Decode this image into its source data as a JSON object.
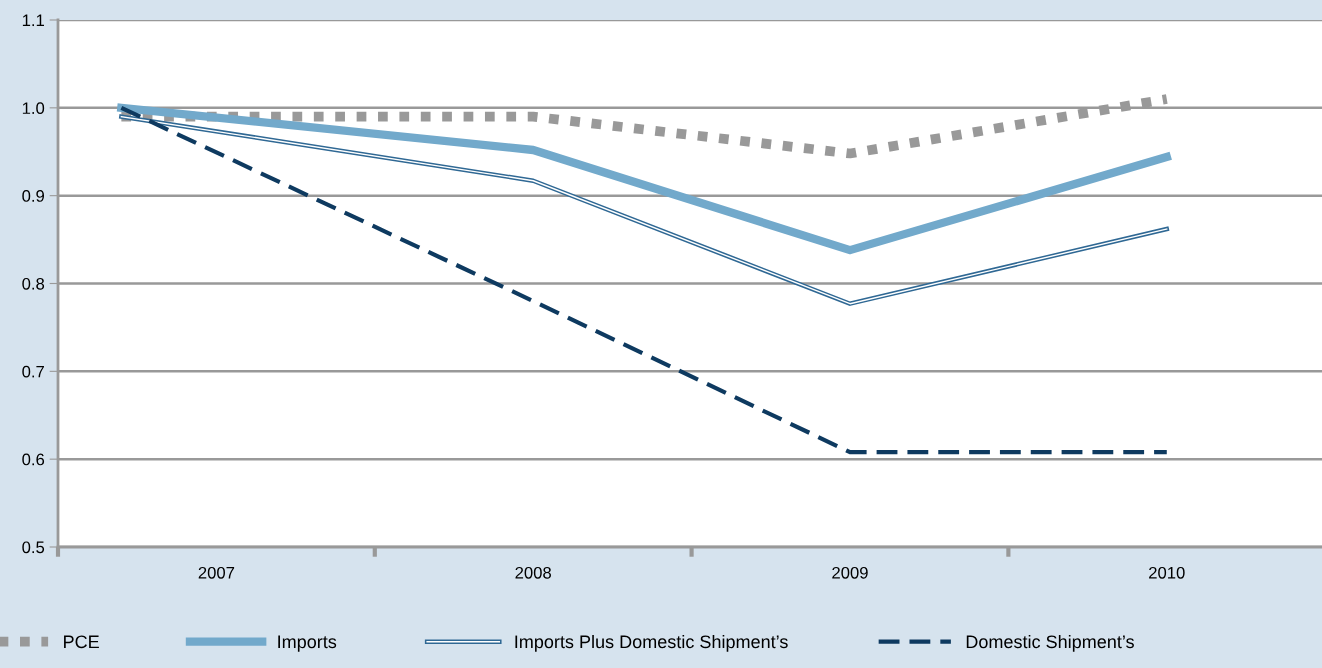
{
  "chart_data": {
    "type": "line",
    "x": [
      2006.7,
      2008,
      2009,
      2010
    ],
    "series": [
      {
        "name": "PCE",
        "color": "#999999",
        "line_style": "dotted",
        "values": [
          0.99,
          0.99,
          0.948,
          1.01
        ]
      },
      {
        "name": "Imports",
        "color": "#72a9cb",
        "line_style": "solid",
        "values": [
          1.0,
          0.952,
          0.838,
          0.944
        ]
      },
      {
        "name": "Imports Plus Domestic Shipment’s",
        "color": "#2f6894",
        "line_style": "solid",
        "values": [
          0.99,
          0.917,
          0.777,
          0.862
        ]
      },
      {
        "name": "Domestic Shipment’s",
        "color": "#0e3a60",
        "line_style": "dashed",
        "values": [
          1.0,
          0.78,
          0.608,
          0.608
        ]
      }
    ],
    "xlim": [
      2006.5,
      2010.49
    ],
    "xticks": [
      {
        "value": 2006.5,
        "label": null
      },
      {
        "value": 2007,
        "label": "2007"
      },
      {
        "value": 2007.5,
        "label": null
      },
      {
        "value": 2008,
        "label": "2008"
      },
      {
        "value": 2008.5,
        "label": null
      },
      {
        "value": 2009,
        "label": "2009"
      },
      {
        "value": 2009.5,
        "label": null
      },
      {
        "value": 2010,
        "label": "2010"
      }
    ],
    "ylim": [
      0.5,
      1.1
    ],
    "yticks": [
      {
        "value": 0.5,
        "label": "0.5"
      },
      {
        "value": 0.6,
        "label": "0.6"
      },
      {
        "value": 0.7,
        "label": "0.7"
      },
      {
        "value": 0.8,
        "label": "0.8"
      },
      {
        "value": 0.9,
        "label": "0.9"
      },
      {
        "value": 1.0,
        "label": "1.0"
      },
      {
        "value": 1.1,
        "label": "1.1"
      }
    ],
    "grid": "y",
    "legend": "bottom",
    "marker": "none"
  }
}
